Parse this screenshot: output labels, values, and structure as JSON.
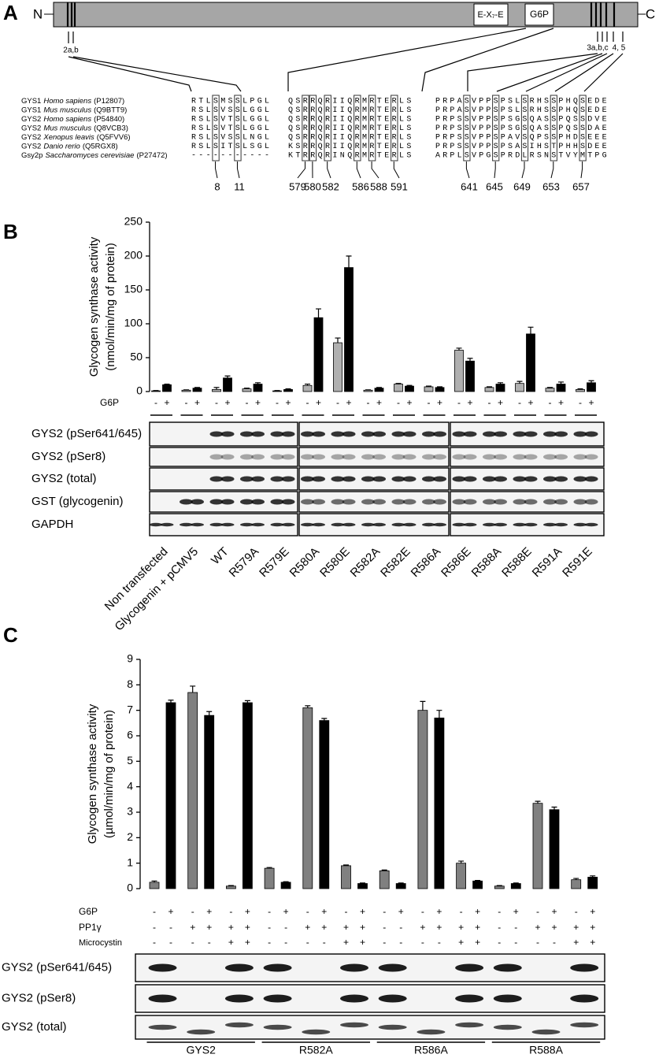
{
  "panel_labels": [
    "A",
    "B",
    "C"
  ],
  "domain": {
    "n_term": "N",
    "c_term": "C",
    "motif": "E-X₇-E",
    "g6p": "G6P",
    "site_labels": [
      "2a,b",
      "3a,b,c",
      "4, 5"
    ]
  },
  "alignment": {
    "rows": [
      {
        "gene": "GYS1",
        "species": "Homo sapiens",
        "accession": "(P12807)",
        "seq": [
          "RTLSMSSLPGL",
          "QSRRQRIIQRMRTERLS",
          "PRPASVPPSPSLSRHSSPHQSEDE"
        ]
      },
      {
        "gene": "GYS1",
        "species": "Mus musculus",
        "accession": "(Q9BTT9)",
        "seq": [
          "RSLSVSSLGGL",
          "QSRRQRIIQRMRTERLS",
          "PRPASVPPSPSLSRHSSPHQSEDE"
        ]
      },
      {
        "gene": "GYS2",
        "species": "Homo sapiens",
        "accession": "(P54840)",
        "seq": [
          "RSLSVTSLGGL",
          "QSRRQRIIQRMRTERLS",
          "PRPSSVPPSPSGSQASSPQSSDVE"
        ]
      },
      {
        "gene": "GYS2",
        "species": "Mus musculus",
        "accession": "(Q8VCB3)",
        "seq": [
          "RSLSVTSLGGL",
          "QSRRQRIIQRMRTERLS",
          "PRPSSVPPSPSGSQASSPQSSDAE"
        ]
      },
      {
        "gene": "GYS2",
        "species": "Xenopus leavis",
        "accession": "(Q5FVV6)",
        "seq": [
          "RSLSVSSLNGL",
          "QSRRQRIIQRMRTERLS",
          "PRPSSVPPSPAVSQPSSPHDSEEE"
        ]
      },
      {
        "gene": "GYS2",
        "species": "Danio rerio",
        "accession": "(Q5RGX8)",
        "seq": [
          "RSLSITSLSGL",
          "KSRRQRIIQRMRTERLS",
          "PRPSSVPPSPSASIHSTPHHSDEE"
        ]
      },
      {
        "gene": "Gsy2p",
        "species": "Saccharomyces cerevisiae",
        "accession": "(P27472)",
        "seq": [
          "-----------",
          "KTRRQRINQRMRTERLS",
          "ARPLSVPGSPRDLRSNSTVYMTPG"
        ]
      }
    ],
    "residues": [
      [
        8,
        11
      ],
      [
        579,
        580,
        582,
        586,
        588,
        591
      ],
      [
        641,
        645,
        649,
        653,
        657
      ]
    ]
  },
  "chart_data": [
    {
      "type": "bar",
      "y_label_lines": [
        "Glycogen synthase activity",
        "(nmol/min/mg of protein)"
      ],
      "categories": [
        "Non transfected",
        "Glycogenin + pCMV5",
        "WT",
        "R579A",
        "R579E",
        "R580A",
        "R580E",
        "R582A",
        "R582E",
        "R586A",
        "R586E",
        "R588A",
        "R588E",
        "R591A",
        "R591E"
      ],
      "series": [
        {
          "color": "#b0b0b0",
          "values": [
            1,
            2,
            3,
            4,
            1,
            9,
            72,
            2,
            11,
            7,
            61,
            6,
            12,
            5,
            3
          ],
          "errors": [
            0.5,
            0.5,
            3,
            1,
            0.5,
            2,
            7,
            0.5,
            1,
            1,
            3,
            1,
            3,
            1,
            1
          ]
        },
        {
          "color": "#000000",
          "values": [
            10,
            5,
            20,
            11,
            3,
            109,
            183,
            5,
            8,
            6,
            45,
            11,
            85,
            11,
            13
          ],
          "errors": [
            1,
            1,
            3,
            2,
            1,
            13,
            17,
            1,
            1,
            1,
            4,
            2,
            10,
            3,
            3
          ]
        }
      ],
      "ylim": [
        0,
        250
      ],
      "yticks": [
        0,
        50,
        100,
        150,
        200,
        250
      ],
      "g6p": {
        "label": "G6P",
        "signs": [
          "-",
          "+"
        ]
      },
      "blot_labels": [
        "GYS2 (pSer641/645)",
        "GYS2 (pSer8)",
        "GYS2 (total)",
        "GST (glycogenin)",
        "GAPDH"
      ]
    },
    {
      "type": "bar",
      "y_label_lines": [
        "Glycogen synthase activity",
        "(µmol/min/mg of protein)"
      ],
      "categories": [
        null,
        null,
        null,
        null,
        null,
        null,
        null,
        null,
        null,
        null,
        null,
        null
      ],
      "series": [
        {
          "color": "#808080",
          "values": [
            0.25,
            7.7,
            0.1,
            0.8,
            7.1,
            0.9,
            0.7,
            7.0,
            1.0,
            0.1,
            3.35,
            0.35
          ],
          "errors": [
            0.05,
            0.25,
            0.02,
            0.03,
            0.08,
            0.03,
            0.03,
            0.35,
            0.08,
            0.02,
            0.08,
            0.05
          ]
        },
        {
          "color": "#000000",
          "values": [
            7.3,
            6.8,
            7.3,
            0.25,
            6.6,
            0.2,
            0.2,
            6.7,
            0.3,
            0.2,
            3.1,
            0.45
          ],
          "errors": [
            0.1,
            0.15,
            0.08,
            0.02,
            0.08,
            0.02,
            0.02,
            0.3,
            0.02,
            0.02,
            0.1,
            0.05
          ]
        }
      ],
      "ylim": [
        0,
        9
      ],
      "yticks": [
        0,
        1,
        2,
        3,
        4,
        5,
        6,
        7,
        8,
        9
      ],
      "conditions": [
        {
          "label": "G6P",
          "signs": [
            "-",
            "+",
            "-",
            "+",
            "-",
            "+",
            "-",
            "+",
            "-",
            "+",
            "-",
            "+",
            "-",
            "+",
            "-",
            "+",
            "-",
            "+",
            "-",
            "+",
            "-",
            "+",
            "-",
            "+"
          ]
        },
        {
          "label": "PP1γ",
          "signs": [
            "-",
            "-",
            "+",
            "+",
            "+",
            "+",
            "-",
            "-",
            "+",
            "+",
            "+",
            "+",
            "-",
            "-",
            "+",
            "+",
            "+",
            "+",
            "-",
            "-",
            "+",
            "+",
            "+",
            "+"
          ]
        },
        {
          "label": "Microcystin",
          "signs": [
            "-",
            "-",
            "-",
            "-",
            "+",
            "+",
            "-",
            "-",
            "-",
            "-",
            "+",
            "+",
            "-",
            "-",
            "-",
            "-",
            "+",
            "+",
            "-",
            "-",
            "-",
            "-",
            "+",
            "+"
          ]
        }
      ],
      "groups": [
        "GYS2",
        "R582A",
        "R586A",
        "R588A"
      ],
      "blot_labels": [
        "GYS2 (pSer641/645)",
        "GYS2 (pSer8)",
        "GYS2 (total)"
      ]
    }
  ]
}
